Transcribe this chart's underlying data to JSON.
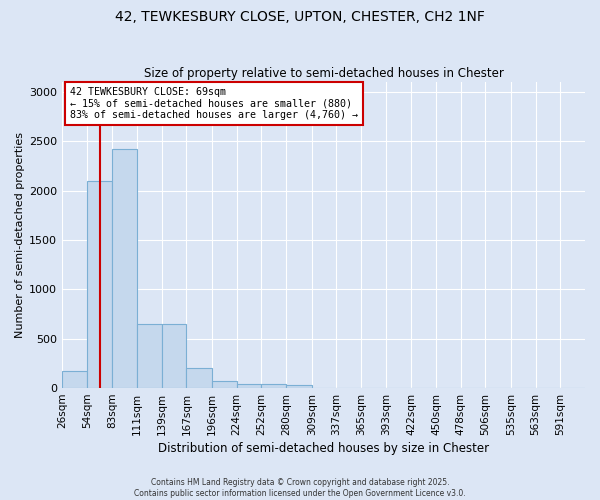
{
  "title1": "42, TEWKESBURY CLOSE, UPTON, CHESTER, CH2 1NF",
  "title2": "Size of property relative to semi-detached houses in Chester",
  "xlabel": "Distribution of semi-detached houses by size in Chester",
  "ylabel": "Number of semi-detached properties",
  "bar_labels": [
    "26sqm",
    "54sqm",
    "83sqm",
    "111sqm",
    "139sqm",
    "167sqm",
    "196sqm",
    "224sqm",
    "252sqm",
    "280sqm",
    "309sqm",
    "337sqm",
    "365sqm",
    "393sqm",
    "422sqm",
    "450sqm",
    "478sqm",
    "506sqm",
    "535sqm",
    "563sqm",
    "591sqm"
  ],
  "bar_values": [
    175,
    2100,
    2420,
    650,
    650,
    200,
    75,
    40,
    40,
    30,
    0,
    0,
    0,
    0,
    0,
    0,
    0,
    0,
    0,
    0,
    0
  ],
  "bin_edges": [
    26,
    54,
    83,
    111,
    139,
    167,
    196,
    224,
    252,
    280,
    309,
    337,
    365,
    393,
    422,
    450,
    478,
    506,
    535,
    563,
    591,
    619
  ],
  "bar_color": "#c5d8ed",
  "bar_edge_color": "#7bafd4",
  "vline_x": 69,
  "vline_color": "#cc0000",
  "annotation_title": "42 TEWKESBURY CLOSE: 69sqm",
  "annotation_line2": "← 15% of semi-detached houses are smaller (880)",
  "annotation_line3": "83% of semi-detached houses are larger (4,760) →",
  "annotation_box_facecolor": "#ffffff",
  "annotation_box_edgecolor": "#cc0000",
  "ylim": [
    0,
    3100
  ],
  "yticks": [
    0,
    500,
    1000,
    1500,
    2000,
    2500,
    3000
  ],
  "background_color": "#dce6f5",
  "grid_color": "#ffffff",
  "footer1": "Contains HM Land Registry data © Crown copyright and database right 2025.",
  "footer2": "Contains public sector information licensed under the Open Government Licence v3.0."
}
